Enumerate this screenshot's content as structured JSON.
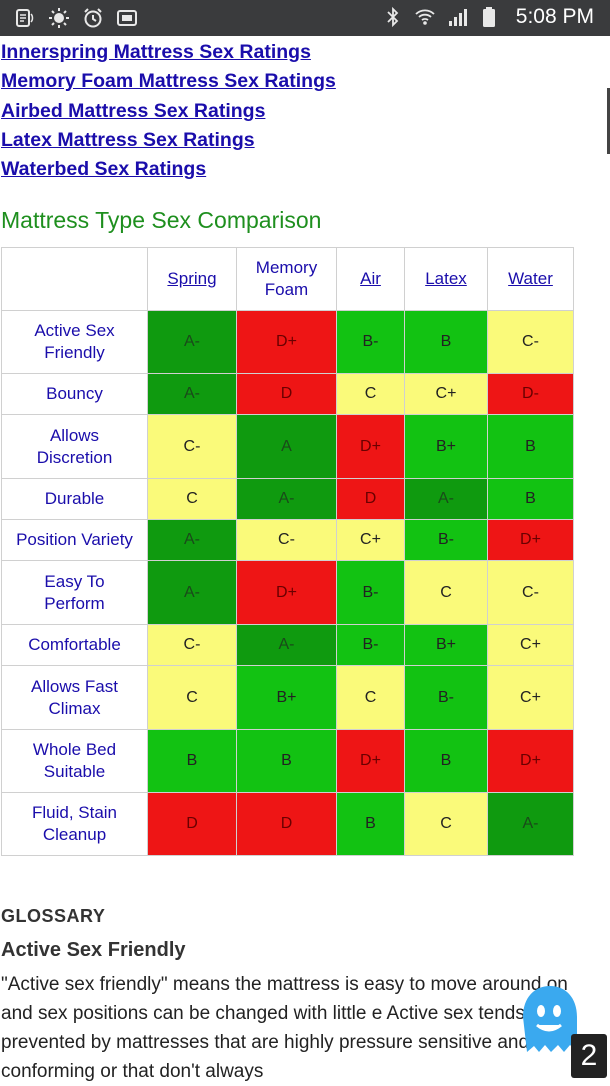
{
  "status_bar": {
    "time": "5:08 PM",
    "left_icons": [
      "voicemail-icon",
      "brightness-icon",
      "alarm-icon",
      "screenshot-icon"
    ],
    "right_icons": [
      "bluetooth-icon",
      "wifi-icon",
      "signal-icon",
      "battery-icon"
    ]
  },
  "links": [
    "Innerspring Mattress Sex Ratings",
    "Memory Foam Mattress Sex Ratings",
    "Airbed Mattress Sex Ratings",
    "Latex Mattress Sex Ratings",
    "Waterbed Sex Ratings"
  ],
  "section_title": "Mattress Type Sex Comparison",
  "table": {
    "columns": [
      "Spring",
      "Memory Foam",
      "Air",
      "Latex",
      "Water"
    ],
    "colors": {
      "dark": "#0f9a0f",
      "green": "#12c212",
      "yellow": "#fafa7a",
      "red": "#ee1515"
    },
    "rows": [
      {
        "label": "Active Sex Friendly",
        "grades": [
          "A-",
          "D+",
          "B-",
          "B",
          "C-"
        ],
        "tones": [
          "dark",
          "red",
          "green",
          "green",
          "yellow"
        ]
      },
      {
        "label": "Bouncy",
        "grades": [
          "A-",
          "D",
          "C",
          "C+",
          "D-"
        ],
        "tones": [
          "dark",
          "red",
          "yellow",
          "yellow",
          "red"
        ]
      },
      {
        "label": "Allows Discretion",
        "grades": [
          "C-",
          "A",
          "D+",
          "B+",
          "B"
        ],
        "tones": [
          "yellow",
          "dark",
          "red",
          "green",
          "green"
        ]
      },
      {
        "label": "Durable",
        "grades": [
          "C",
          "A-",
          "D",
          "A-",
          "B"
        ],
        "tones": [
          "yellow",
          "dark",
          "red",
          "dark",
          "green"
        ]
      },
      {
        "label": "Position Variety",
        "grades": [
          "A-",
          "C-",
          "C+",
          "B-",
          "D+"
        ],
        "tones": [
          "dark",
          "yellow",
          "yellow",
          "green",
          "red"
        ]
      },
      {
        "label": "Easy To Perform",
        "grades": [
          "A-",
          "D+",
          "B-",
          "C",
          "C-"
        ],
        "tones": [
          "dark",
          "red",
          "green",
          "yellow",
          "yellow"
        ]
      },
      {
        "label": "Comfortable",
        "grades": [
          "C-",
          "A-",
          "B-",
          "B+",
          "C+"
        ],
        "tones": [
          "yellow",
          "dark",
          "green",
          "green",
          "yellow"
        ]
      },
      {
        "label": "Allows Fast Climax",
        "grades": [
          "C",
          "B+",
          "C",
          "B-",
          "C+"
        ],
        "tones": [
          "yellow",
          "green",
          "yellow",
          "green",
          "yellow"
        ]
      },
      {
        "label": "Whole Bed Suitable",
        "grades": [
          "B",
          "B",
          "D+",
          "B",
          "D+"
        ],
        "tones": [
          "green",
          "green",
          "red",
          "green",
          "red"
        ]
      },
      {
        "label": "Fluid, Stain Cleanup",
        "grades": [
          "D",
          "D",
          "B",
          "C",
          "A-"
        ],
        "tones": [
          "red",
          "red",
          "green",
          "yellow",
          "dark"
        ]
      }
    ]
  },
  "glossary": {
    "heading": "GLOSSARY",
    "term": "Active Sex Friendly",
    "text": "\"Active sex friendly\" means the mattress is easy to move around on and sex positions can be changed with little e Active sex tends to be prevented by mattresses that are highly pressure sensitive and conforming or that don't always"
  },
  "overlay": {
    "badge": "2",
    "ghost_icon": "ghost-icon"
  }
}
